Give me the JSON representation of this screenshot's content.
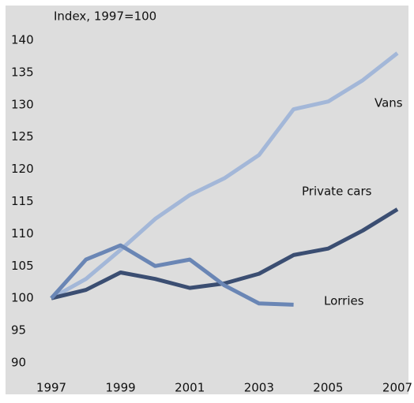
{
  "chart_data": {
    "type": "line",
    "y_axis_label": "Index, 1997=100",
    "x": [
      1997,
      1998,
      1999,
      2000,
      2001,
      2002,
      2003,
      2004,
      2005,
      2006,
      2007
    ],
    "series": [
      {
        "name": "Vans",
        "color": "#a3b7d8",
        "values": [
          100,
          103,
          107.5,
          112.3,
          116,
          118.6,
          122.2,
          129.3,
          130.5,
          133.8,
          138
        ]
      },
      {
        "name": "Private cars",
        "color": "#3b4e72",
        "values": [
          100,
          101.3,
          104,
          103,
          101.6,
          102.3,
          103.8,
          106.7,
          107.7,
          110.5,
          113.8
        ]
      },
      {
        "name": "Lorries",
        "color": "#6a86b5",
        "values": [
          100,
          106,
          108.2,
          105,
          106,
          102,
          99.2,
          99,
          null,
          null,
          null
        ]
      }
    ],
    "xlim": [
      1997,
      2007
    ],
    "xticks": [
      1997,
      1999,
      2001,
      2003,
      2005,
      2007
    ],
    "ylim": [
      90,
      140
    ],
    "yticks": [
      90,
      95,
      100,
      105,
      110,
      115,
      120,
      125,
      130,
      135,
      140
    ],
    "grid": false
  }
}
